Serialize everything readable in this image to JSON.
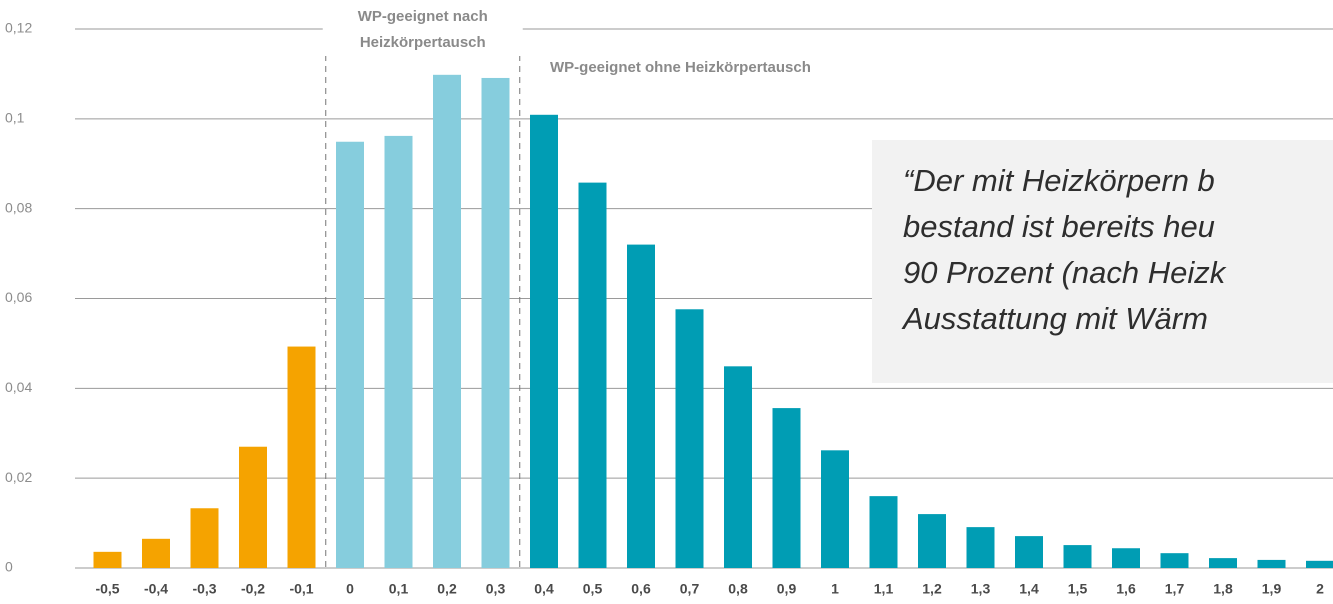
{
  "chart_data": {
    "type": "bar",
    "categories": [
      "-0,5",
      "-0,4",
      "-0,3",
      "-0,2",
      "-0,1",
      "0",
      "0,1",
      "0,2",
      "0,3",
      "0,4",
      "0,5",
      "0,6",
      "0,7",
      "0,8",
      "0,9",
      "1",
      "1,1",
      "1,2",
      "1,3",
      "1,4",
      "1,5",
      "1,6",
      "1,7",
      "1,8",
      "1,9",
      "2"
    ],
    "values": [
      0.0036,
      0.0065,
      0.0133,
      0.027,
      0.0493,
      0.0949,
      0.0962,
      0.1098,
      0.1091,
      0.1009,
      0.0858,
      0.072,
      0.0576,
      0.0449,
      0.0356,
      0.0262,
      0.016,
      0.012,
      0.0091,
      0.0071,
      0.0051,
      0.0044,
      0.0033,
      0.0022,
      0.0018,
      0.0016
    ],
    "colors": [
      "#f5a300",
      "#f5a300",
      "#f5a300",
      "#f5a300",
      "#f5a300",
      "#86cddd",
      "#86cddd",
      "#86cddd",
      "#86cddd",
      "#009db4",
      "#009db4",
      "#009db4",
      "#009db4",
      "#009db4",
      "#009db4",
      "#009db4",
      "#009db4",
      "#009db4",
      "#009db4",
      "#009db4",
      "#009db4",
      "#009db4",
      "#009db4",
      "#009db4",
      "#009db4",
      "#009db4"
    ],
    "ylim": [
      0,
      0.12
    ],
    "yticks": [
      0,
      {
        "value": 0.02,
        "label": "0,02"
      },
      {
        "value": 0.04,
        "label": "0,04"
      },
      {
        "value": 0.06,
        "label": "0,06"
      },
      {
        "value": 0.08,
        "label": "0,08"
      },
      {
        "value": 0.1,
        "label": "0,1"
      },
      {
        "value": 0.12,
        "label": "0,12"
      }
    ],
    "grid": true,
    "annotations": [
      {
        "lines": [
          "WP-geeignet nach",
          "Heizkörpertausch"
        ]
      },
      {
        "lines": [
          "WP-geeignet ohne Heizkörpertausch"
        ]
      }
    ],
    "quote": [
      "“Der mit Heizkörpern b",
      "bestand  ist bereits heu",
      "90 Prozent (nach Heizk",
      "Ausstattung mit  Wärm"
    ]
  }
}
